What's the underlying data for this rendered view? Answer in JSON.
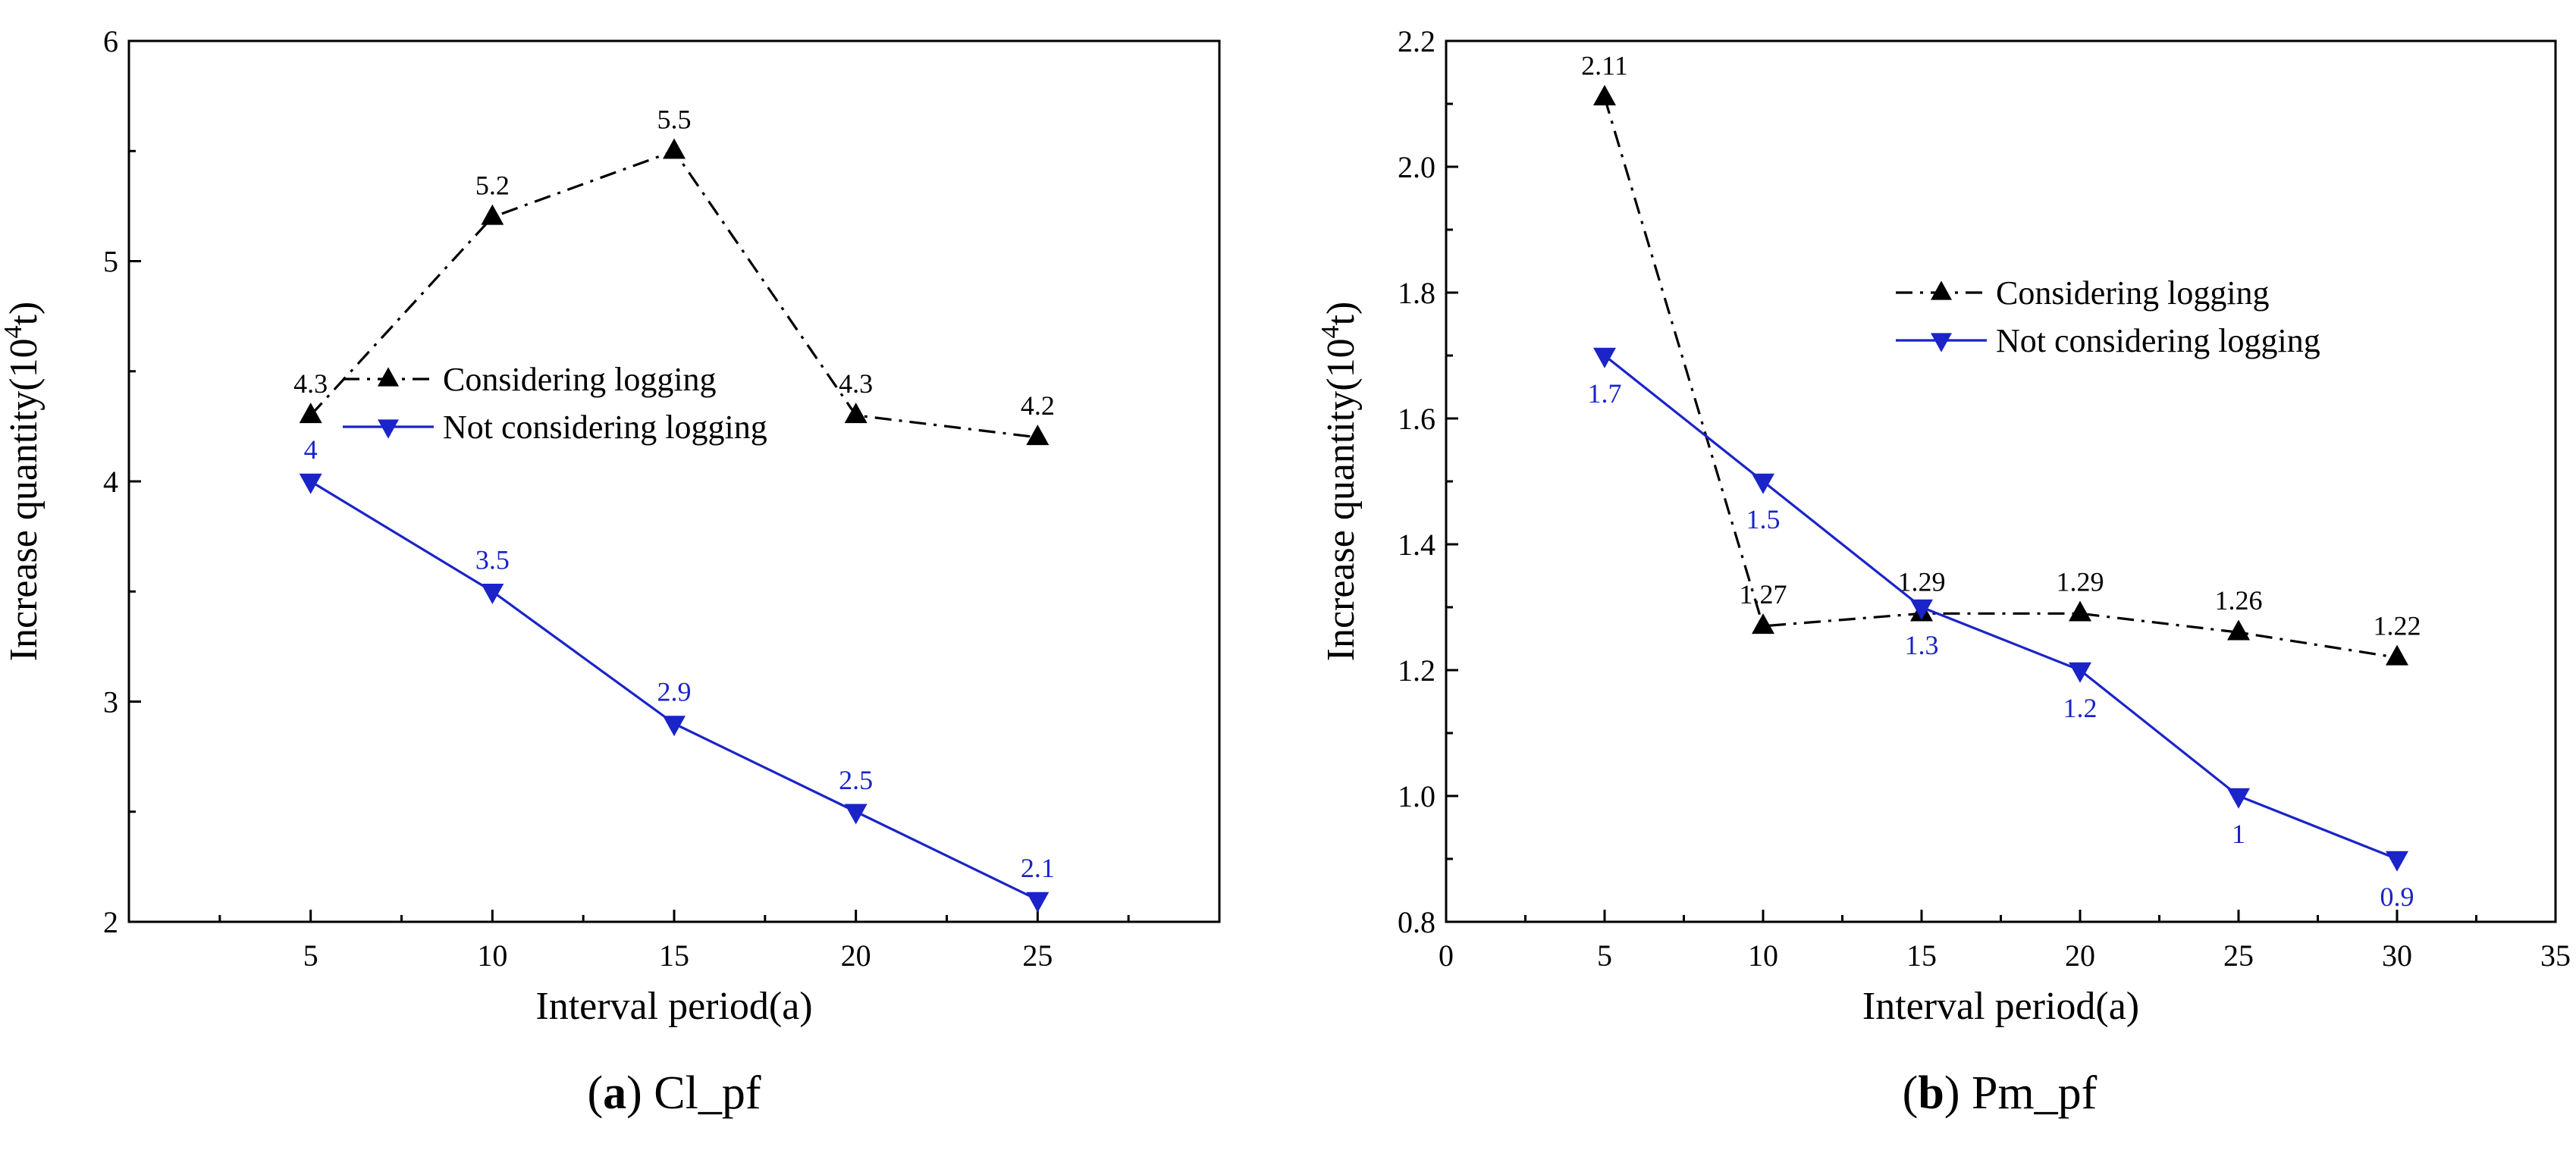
{
  "chart_data": [
    {
      "type": "line",
      "caption_letter": "a",
      "caption_text": "Cl_pf",
      "xlabel": "Interval period(a)",
      "ylabel": "Increase quantity(10",
      "ylabel_sup": "4",
      "ylabel_end": "t)",
      "xlim": [
        0,
        30
      ],
      "ylim": [
        2,
        6
      ],
      "xticks": [
        5,
        10,
        15,
        20,
        25
      ],
      "yticks": [
        2,
        3,
        4,
        5,
        6
      ],
      "ytick_labels": [
        "2",
        "3",
        "4",
        "5",
        "6"
      ],
      "x": [
        5,
        10,
        15,
        20,
        25
      ],
      "legend_position": "center",
      "series": [
        {
          "name": "Considering logging",
          "values": [
            4.3,
            5.2,
            5.5,
            4.3,
            4.2
          ],
          "labels": [
            "4.3",
            "5.2",
            "5.5",
            "4.3",
            "4.2"
          ],
          "color": "#000000",
          "marker": "triangle-up",
          "style": "dashdot"
        },
        {
          "name": "Not considering logging",
          "values": [
            4,
            3.5,
            2.9,
            2.5,
            2.1
          ],
          "labels": [
            "4",
            "3.5",
            "2.9",
            "2.5",
            "2.1"
          ],
          "color": "#1a24c8",
          "marker": "triangle-down",
          "style": "solid"
        }
      ]
    },
    {
      "type": "line",
      "caption_letter": "b",
      "caption_text": "Pm_pf",
      "xlabel": "Interval period(a)",
      "ylabel": "Increase quantity(10",
      "ylabel_sup": "4",
      "ylabel_end": "t)",
      "xlim": [
        0,
        35
      ],
      "ylim": [
        0.8,
        2.2
      ],
      "xticks": [
        0,
        5,
        10,
        15,
        20,
        25,
        30,
        35
      ],
      "yticks": [
        0.8,
        1.0,
        1.2,
        1.4,
        1.6,
        1.8,
        2.0,
        2.2
      ],
      "ytick_labels": [
        "0.8",
        "1.0",
        "1.2",
        "1.4",
        "1.6",
        "1.8",
        "2.0",
        "2.2"
      ],
      "x": [
        5,
        10,
        15,
        20,
        25,
        30
      ],
      "legend_position": "upper-right",
      "series": [
        {
          "name": "Considering logging",
          "values": [
            2.11,
            1.27,
            1.29,
            1.29,
            1.26,
            1.22
          ],
          "labels": [
            "2.11",
            "1.27",
            "1.29",
            "1.29",
            "1.26",
            "1.22"
          ],
          "color": "#000000",
          "marker": "triangle-up",
          "style": "dashdot"
        },
        {
          "name": "Not considering logging",
          "values": [
            1.7,
            1.5,
            1.3,
            1.2,
            1,
            0.9
          ],
          "labels": [
            "1.7",
            "1.5",
            "1.3",
            "1.2",
            "1",
            "0.9"
          ],
          "color": "#1a24c8",
          "marker": "triangle-down",
          "style": "solid"
        }
      ]
    }
  ]
}
